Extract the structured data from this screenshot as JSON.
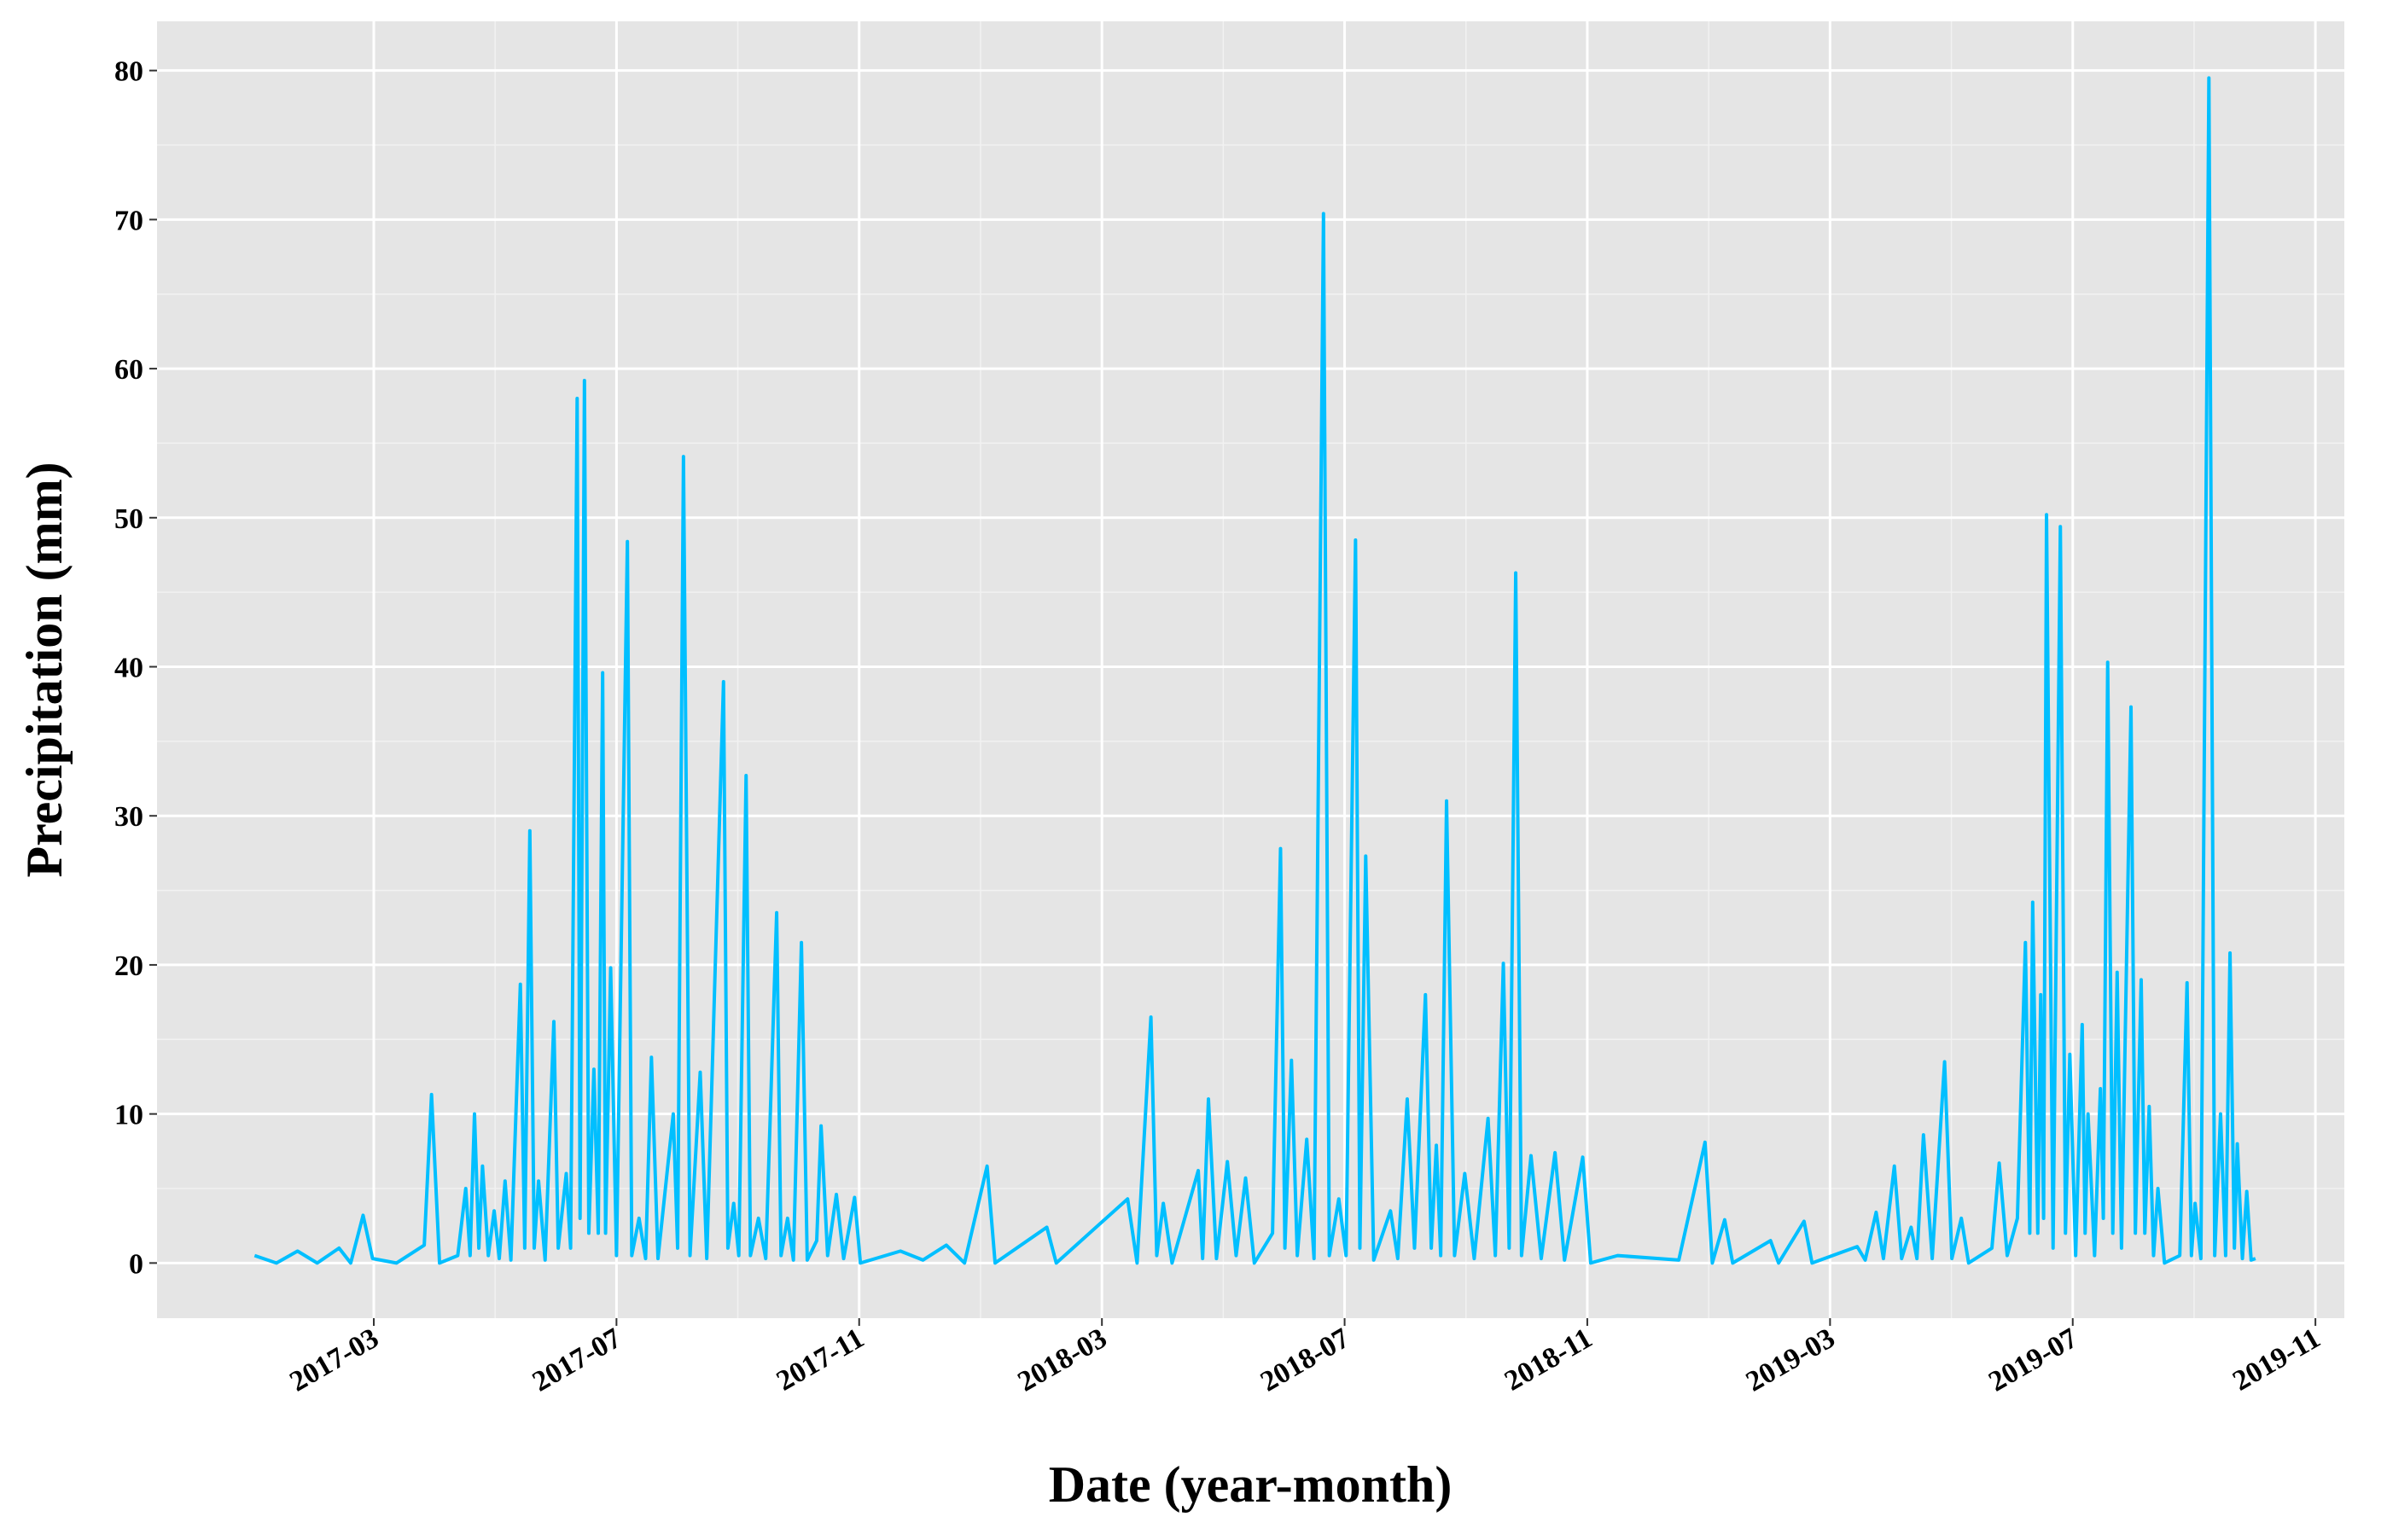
{
  "chart_data": {
    "type": "line",
    "x_label": "Date (year-month)",
    "y_label": "Precipitation (mm)",
    "color": "#00bfff",
    "grid": true,
    "xlim": [
      2016.869,
      2019.873
    ],
    "ylim": [
      -3.7,
      83.3
    ],
    "xticks": [
      {
        "value": 2017.1667,
        "label": "2017-03"
      },
      {
        "value": 2017.5,
        "label": "2017-07"
      },
      {
        "value": 2017.8333,
        "label": "2017-11"
      },
      {
        "value": 2018.1667,
        "label": "2018-03"
      },
      {
        "value": 2018.5,
        "label": "2018-07"
      },
      {
        "value": 2018.8333,
        "label": "2018-11"
      },
      {
        "value": 2019.1667,
        "label": "2019-03"
      },
      {
        "value": 2019.5,
        "label": "2019-07"
      },
      {
        "value": 2019.8333,
        "label": "2019-11"
      }
    ],
    "yticks": [
      0,
      10,
      20,
      30,
      40,
      50,
      60,
      70,
      80
    ],
    "x": [
      2017.003,
      2017.033,
      2017.062,
      2017.089,
      2017.119,
      2017.135,
      2017.152,
      2017.165,
      2017.198,
      2017.236,
      2017.246,
      2017.257,
      2017.282,
      2017.293,
      2017.299,
      2017.305,
      2017.311,
      2017.316,
      2017.324,
      2017.332,
      2017.339,
      2017.347,
      2017.355,
      2017.368,
      2017.374,
      2017.381,
      2017.387,
      2017.393,
      2017.402,
      2017.414,
      2017.42,
      2017.431,
      2017.437,
      2017.446,
      2017.45,
      2017.456,
      2017.462,
      2017.469,
      2017.475,
      2017.481,
      2017.485,
      2017.492,
      2017.5,
      2017.515,
      2017.521,
      2017.531,
      2017.54,
      2017.548,
      2017.557,
      2017.578,
      2017.584,
      2017.592,
      2017.601,
      2017.615,
      2017.624,
      2017.647,
      2017.653,
      2017.661,
      2017.668,
      2017.678,
      2017.684,
      2017.695,
      2017.705,
      2017.72,
      2017.726,
      2017.735,
      2017.743,
      2017.754,
      2017.762,
      2017.775,
      2017.781,
      2017.79,
      2017.802,
      2017.812,
      2017.827,
      2017.835,
      2017.89,
      2017.921,
      2017.953,
      2017.978,
      2018.009,
      2018.02,
      2018.091,
      2018.104,
      2018.202,
      2018.215,
      2018.234,
      2018.242,
      2018.251,
      2018.263,
      2018.299,
      2018.305,
      2018.313,
      2018.324,
      2018.339,
      2018.351,
      2018.364,
      2018.376,
      2018.401,
      2018.412,
      2018.418,
      2018.427,
      2018.435,
      2018.448,
      2018.458,
      2018.471,
      2018.479,
      2018.492,
      2018.502,
      2018.515,
      2018.521,
      2018.529,
      2018.54,
      2018.563,
      2018.573,
      2018.586,
      2018.596,
      2018.611,
      2018.619,
      2018.626,
      2018.632,
      2018.64,
      2018.651,
      2018.665,
      2018.678,
      2018.697,
      2018.707,
      2018.718,
      2018.726,
      2018.735,
      2018.743,
      2018.756,
      2018.77,
      2018.789,
      2018.802,
      2018.827,
      2018.838,
      2018.875,
      2018.959,
      2018.995,
      2019.005,
      2019.022,
      2019.033,
      2019.085,
      2019.096,
      2019.131,
      2019.142,
      2019.204,
      2019.215,
      2019.23,
      2019.24,
      2019.255,
      2019.265,
      2019.278,
      2019.286,
      2019.295,
      2019.307,
      2019.324,
      2019.334,
      2019.347,
      2019.357,
      2019.389,
      2019.399,
      2019.41,
      2019.424,
      2019.435,
      2019.441,
      2019.445,
      2019.452,
      2019.456,
      2019.46,
      2019.464,
      2019.473,
      2019.483,
      2019.49,
      2019.496,
      2019.504,
      2019.513,
      2019.517,
      2019.521,
      2019.53,
      2019.538,
      2019.542,
      2019.548,
      2019.555,
      2019.561,
      2019.567,
      2019.58,
      2019.586,
      2019.594,
      2019.599,
      2019.605,
      2019.611,
      2019.617,
      2019.626,
      2019.647,
      2019.657,
      2019.663,
      2019.668,
      2019.676,
      2019.687,
      2019.695,
      2019.703,
      2019.71,
      2019.716,
      2019.722,
      2019.726,
      2019.733,
      2019.739,
      2019.745,
      2019.751
    ],
    "values": [
      0.5,
      0,
      0.8,
      0,
      1,
      0,
      3.2,
      0.3,
      0,
      1.2,
      11.3,
      0,
      0.5,
      5,
      0.5,
      10,
      1,
      6.5,
      0.5,
      3.5,
      0.3,
      5.5,
      0.2,
      18.7,
      1,
      29,
      1,
      5.5,
      0.2,
      16.2,
      1,
      6,
      1,
      58,
      3,
      59.2,
      2,
      13,
      2,
      39.6,
      2,
      19.8,
      0.5,
      48.4,
      0.5,
      3,
      0.3,
      13.8,
      0.3,
      10,
      1,
      54.1,
      0.5,
      12.8,
      0.3,
      39,
      1,
      4,
      0.5,
      32.7,
      0.5,
      3,
      0.3,
      23.5,
      0.5,
      3,
      0.2,
      21.5,
      0.2,
      1.5,
      9.2,
      0.5,
      4.6,
      0.3,
      4.4,
      0,
      0.8,
      0.2,
      1.2,
      0,
      6.5,
      0,
      2.4,
      0,
      4.3,
      0,
      16.5,
      0.5,
      4,
      0,
      6.2,
      0.3,
      11,
      0.3,
      6.8,
      0.5,
      5.7,
      0,
      2,
      27.8,
      1,
      13.6,
      0.5,
      8.3,
      0.3,
      70.4,
      0.5,
      4.3,
      0.5,
      48.5,
      1,
      27.3,
      0.2,
      3.5,
      0.3,
      11,
      1,
      18,
      1,
      7.9,
      0.5,
      31,
      0.5,
      6,
      0.3,
      9.7,
      0.5,
      20.1,
      1,
      46.3,
      0.5,
      7.2,
      0.3,
      7.4,
      0.2,
      7.1,
      0,
      0.5,
      0.2,
      8.1,
      0,
      2.9,
      0,
      1.5,
      0,
      2.8,
      0,
      1.1,
      0.2,
      3.4,
      0.3,
      6.5,
      0.3,
      2.4,
      0.3,
      8.6,
      0.3,
      13.5,
      0.3,
      3,
      0,
      1,
      6.7,
      0.5,
      3,
      21.5,
      2,
      24.2,
      2,
      18,
      3,
      50.2,
      1,
      49.4,
      2,
      14,
      0.5,
      16,
      2,
      10,
      0.5,
      11.7,
      3,
      40.3,
      2,
      19.5,
      1,
      37.3,
      2,
      19,
      2,
      10.5,
      0.5,
      5,
      0,
      0.5,
      18.8,
      0.5,
      4,
      0.3,
      79.5,
      0.5,
      10,
      0.5,
      20.8,
      1,
      8,
      0.3,
      4.8,
      0.2,
      0.3
    ]
  }
}
